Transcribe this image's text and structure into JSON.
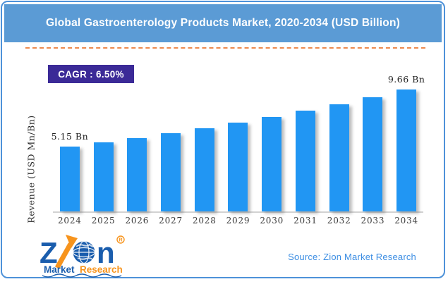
{
  "header": {
    "title": "Global Gastroenterology Products Market, 2020-2034 (USD Billion)"
  },
  "badge": {
    "cagr_label": "CAGR : 6.50%"
  },
  "chart_data": {
    "type": "bar",
    "title": "Global Gastroenterology Products Market, 2020-2034 (USD Billion)",
    "categories": [
      "2024",
      "2025",
      "2026",
      "2027",
      "2028",
      "2029",
      "2030",
      "2031",
      "2032",
      "2033",
      "2034"
    ],
    "values": [
      5.15,
      5.48,
      5.84,
      6.22,
      6.62,
      7.05,
      7.51,
      8.0,
      8.52,
      9.07,
      9.66
    ],
    "unit": "USD Bn",
    "cagr_percent": 6.5,
    "xlabel": "",
    "ylabel": "Revenue (USD Mn/Bn)",
    "ylim": [
      0,
      10.5
    ],
    "grid": false,
    "legend": "none",
    "point_labels": {
      "2024": "5.15 Bn",
      "2034": "9.66 Bn"
    },
    "bar_color": "#2196f3"
  },
  "footer": {
    "source": "Source: Zion Market Research",
    "logo": {
      "alt": "Zion Market Research",
      "brand_z": "Z",
      "brand_n": "n",
      "registered": "R",
      "market": "Market",
      "research": "Research"
    }
  },
  "colors": {
    "header_bg": "#5b9bd5",
    "frame_border": "#4e92d9",
    "dashed_line": "#ed8a4e",
    "badge_bg": "#3b2a97",
    "bar": "#2196f3",
    "source_text": "#3d8ee3",
    "logo_blue": "#1a5dad",
    "logo_orange": "#f7941d",
    "axis_line": "#d2d2d2"
  }
}
